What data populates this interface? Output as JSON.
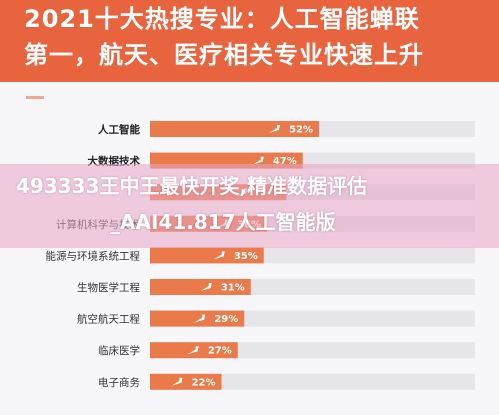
{
  "header": {
    "title_line1": "2021十大热搜专业：人工智能蝉联",
    "title_line2": "第一，航天、医疗相关专业快速上升"
  },
  "overlay": {
    "line1": "493333王中王最快开奖,精准数据评估",
    "line2": "_AAI41.817人工智能版"
  },
  "colors": {
    "header_bg": "#e8643e",
    "bar_fill": "#ea7a4a",
    "bar_track": "#e6e5ea",
    "watermark": "#e8a6c4"
  },
  "chart_data": {
    "type": "bar",
    "orientation": "horizontal",
    "categories": [
      "人工智能",
      "大数据技术",
      "",
      "计算机科学与技术",
      "能源与环境系统工程",
      "生物医学工程",
      "航空航天工程",
      "临床医学",
      "电子商务"
    ],
    "values": [
      52,
      47,
      42,
      36,
      35,
      31,
      29,
      27,
      22
    ],
    "value_labels": [
      "52%",
      "47%",
      "",
      "36%",
      "35%",
      "31%",
      "29%",
      "27%",
      "22%"
    ],
    "xlim": [
      0,
      100
    ],
    "grid": false,
    "legend": "none"
  }
}
